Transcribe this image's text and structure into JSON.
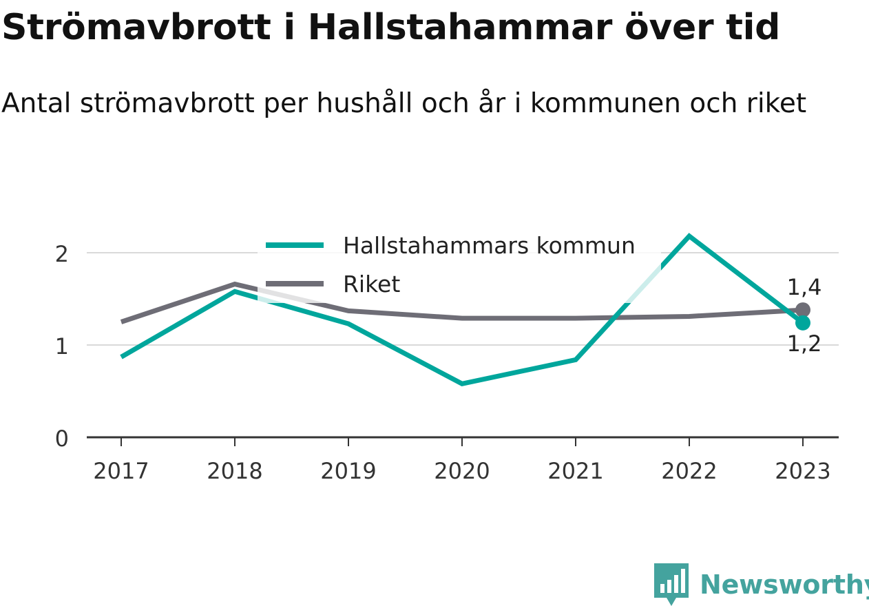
{
  "header": {
    "title": "Strömavbrott i Hallstahammar över tid",
    "subtitle": "Antal strömavbrott per hushåll och år i kommunen och riket"
  },
  "brand": {
    "name": "Newsworthy",
    "color": "#44a39e",
    "icon": "newsworthy-logo-icon"
  },
  "chart_data": {
    "type": "line",
    "x": [
      "2017",
      "2018",
      "2019",
      "2020",
      "2021",
      "2022",
      "2023"
    ],
    "series": [
      {
        "name": "Hallstahammars kommun",
        "color": "#00a69c",
        "values": [
          0.87,
          1.58,
          1.23,
          0.58,
          0.84,
          2.18,
          1.24
        ],
        "end_label": "1,2"
      },
      {
        "name": "Riket",
        "color": "#6e6d76",
        "values": [
          1.25,
          1.66,
          1.37,
          1.29,
          1.29,
          1.31,
          1.38
        ],
        "end_label": "1,4"
      }
    ],
    "y_ticks": [
      {
        "value": 0,
        "label": "0"
      },
      {
        "value": 1,
        "label": "1"
      },
      {
        "value": 2,
        "label": "2"
      }
    ],
    "ylim": [
      0,
      2.25
    ],
    "grid": true,
    "legend_position": "top-center"
  }
}
